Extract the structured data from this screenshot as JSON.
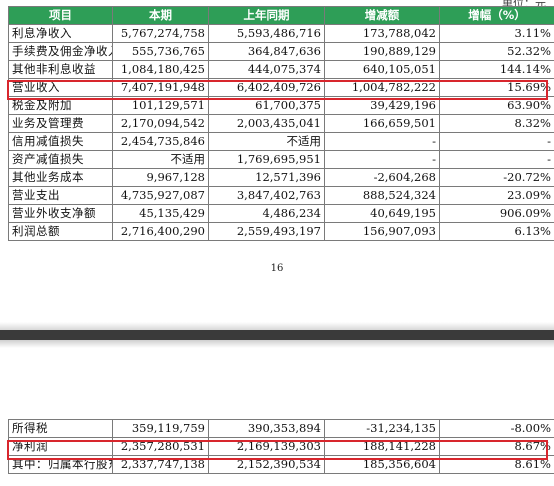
{
  "unit_note": "单位：元",
  "page_number": "16",
  "headers": [
    "项目",
    "本期",
    "上年同期",
    "增减额",
    "增幅（%）"
  ],
  "rows_top": [
    [
      "利息净收入",
      "5,767,274,758",
      "5,593,486,716",
      "173,788,042",
      "3.11%"
    ],
    [
      "手续费及佣金净收入",
      "555,736,765",
      "364,847,636",
      "190,889,129",
      "52.32%"
    ],
    [
      "其他非利息收益",
      "1,084,180,425",
      "444,075,374",
      "640,105,051",
      "144.14%"
    ],
    [
      "营业收入",
      "7,407,191,948",
      "6,402,409,726",
      "1,004,782,222",
      "15.69%"
    ],
    [
      "税金及附加",
      "101,129,571",
      "61,700,375",
      "39,429,196",
      "63.90%"
    ],
    [
      "业务及管理费",
      "2,170,094,542",
      "2,003,435,041",
      "166,659,501",
      "8.32%"
    ],
    [
      "信用减值损失",
      "2,454,735,846",
      "不适用",
      "-",
      "-"
    ],
    [
      "资产减值损失",
      "不适用",
      "1,769,695,951",
      "-",
      "-"
    ],
    [
      "其他业务成本",
      "9,967,128",
      "12,571,396",
      "-2,604,268",
      "-20.72%"
    ],
    [
      "营业支出",
      "4,735,927,087",
      "3,847,402,763",
      "888,524,324",
      "23.09%"
    ],
    [
      "营业外收支净额",
      "45,135,429",
      "4,486,234",
      "40,649,195",
      "906.09%"
    ],
    [
      "利润总额",
      "2,716,400,290",
      "2,559,493,197",
      "156,907,093",
      "6.13%"
    ]
  ],
  "rows_bottom": [
    [
      "所得税",
      "359,119,759",
      "390,353,894",
      "-31,234,135",
      "-8.00%"
    ],
    [
      "净利润",
      "2,357,280,531",
      "2,169,139,303",
      "188,141,228",
      "8.67%"
    ],
    [
      "其中：归属本行股东净利润",
      "2,337,747,138",
      "2,152,390,534",
      "185,356,604",
      "8.61%"
    ]
  ],
  "colors": {
    "header_bg": "#2e9e57",
    "highlight_border": "#d8262d"
  }
}
